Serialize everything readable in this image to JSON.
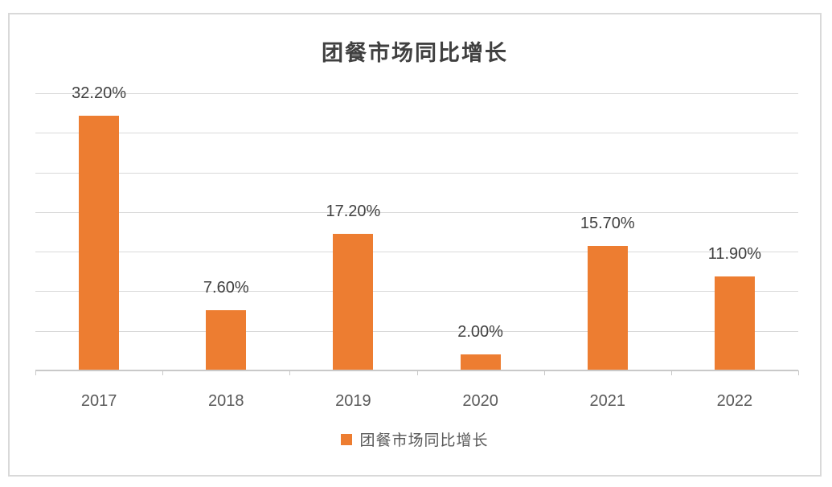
{
  "chart_data": {
    "type": "bar",
    "title": "团餐市场同比增长",
    "categories": [
      "2017",
      "2018",
      "2019",
      "2020",
      "2021",
      "2022"
    ],
    "values": [
      32.2,
      7.6,
      17.2,
      2.0,
      15.7,
      11.9
    ],
    "data_labels": [
      "32.20%",
      "7.60%",
      "17.20%",
      "2.00%",
      "15.70%",
      "11.90%"
    ],
    "ylim": [
      0,
      35
    ],
    "gridline_step": 5,
    "grid": true,
    "legend": {
      "label": "团餐市场同比增长",
      "position": "bottom"
    },
    "colors": {
      "bar": "#ED7D31",
      "gridline": "#D9D9D9",
      "axis": "#C9C9C9",
      "data_label": "#404040",
      "tick_label": "#595959",
      "title": "#404040",
      "frame_border": "#D9D9D9"
    }
  }
}
